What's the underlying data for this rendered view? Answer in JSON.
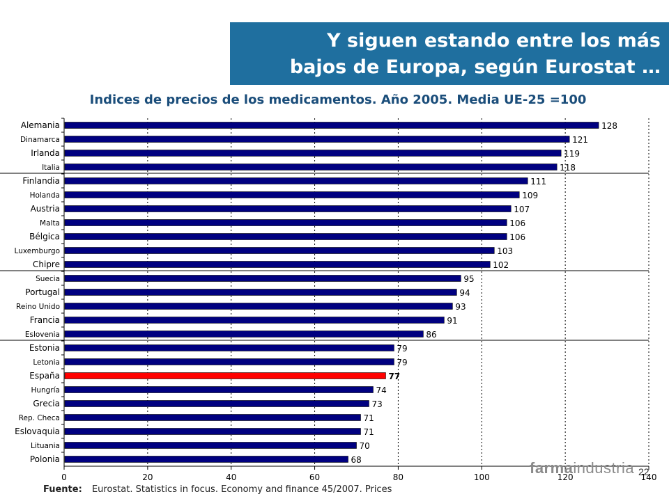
{
  "header": {
    "title_line1": "Y siguen estando entre los más",
    "title_line2": "bajos de Europa, según Eurostat …",
    "subtitle": "Indices de precios de los medicamentos. Año 2005. Media UE-25 =100"
  },
  "footer": {
    "source_label": "Fuente:",
    "source_text": "Eurostat. Statistics in focus. Economy and finance 45/2007. Prices",
    "page_number": "22",
    "logo_part1": "farma",
    "logo_part2": "industria"
  },
  "colors": {
    "bar": "#000080",
    "highlight": "#ff0000",
    "title_bg": "#1f6f9f",
    "subtitle": "#1a4d7a"
  },
  "chart_data": {
    "type": "bar",
    "orientation": "horizontal",
    "title": "Indices de precios de los medicamentos. Año 2005. Media UE-25 =100",
    "xlabel": "",
    "ylabel": "",
    "xlim": [
      0,
      140
    ],
    "xticks": [
      0,
      20,
      40,
      60,
      80,
      100,
      120,
      140
    ],
    "grid": "vertical dashed",
    "highlight_category": "España",
    "group_separators_after": [
      "Italia",
      "Chipre",
      "Eslovenia"
    ],
    "categories": [
      "Alemania",
      "Dinamarca",
      "Irlanda",
      "Italia",
      "Finlandia",
      "Holanda",
      "Austria",
      "Malta",
      "Bélgica",
      "Luxemburgo",
      "Chipre",
      "Suecia",
      "Portugal",
      "Reino Unido",
      "Francia",
      "Eslovenia",
      "Estonia",
      "Letonia",
      "España",
      "Hungría",
      "Grecia",
      "Rep. Checa",
      "Eslovaquia",
      "Lituania",
      "Polonia"
    ],
    "values": [
      128,
      121,
      119,
      118,
      111,
      109,
      107,
      106,
      106,
      103,
      102,
      95,
      94,
      93,
      91,
      86,
      79,
      79,
      77,
      74,
      73,
      71,
      71,
      70,
      68
    ]
  }
}
